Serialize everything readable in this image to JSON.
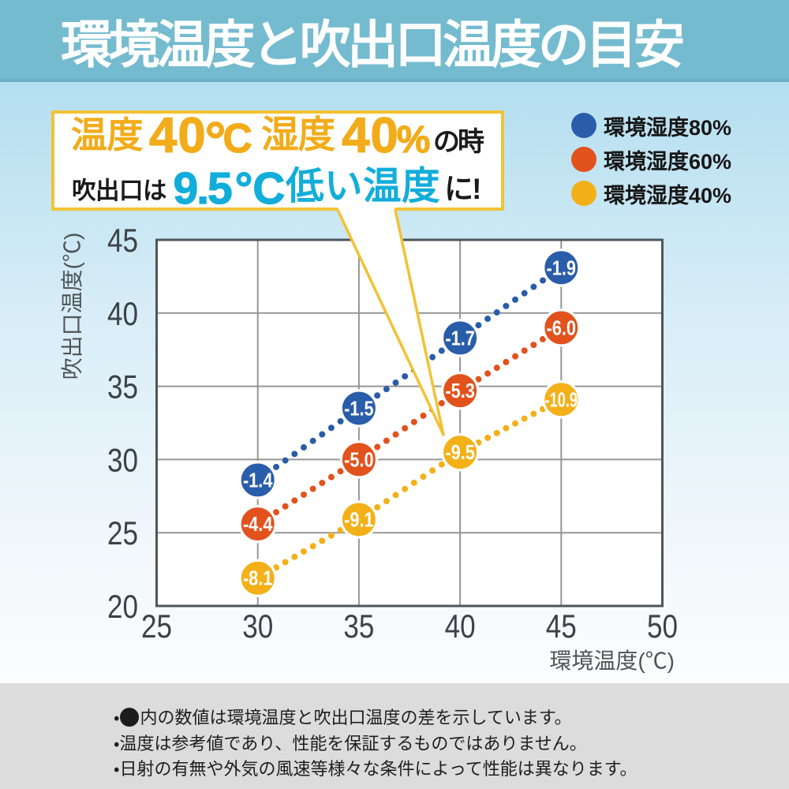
{
  "banner": {
    "title": "環境温度と吹出口温度の目安",
    "bg_color": "#74bbcf"
  },
  "callout": {
    "line1": {
      "temp_label": "温度",
      "temp_value": "40",
      "degree": "°",
      "unit_c": "C",
      "hum_label": "湿度",
      "hum_value": "40",
      "unit_pct": "%",
      "suffix": "の時"
    },
    "line2": {
      "prefix": "吹出口は",
      "value": "9.5",
      "unit": "°C",
      "highlight": "低い温度",
      "suffix": "に!"
    },
    "accent_amber": "#f2ac1a",
    "accent_cyan": "#12adda",
    "border_color": "#f2c235"
  },
  "legend": {
    "items": [
      {
        "label": "環境湿度80%",
        "color": "#2a5da9"
      },
      {
        "label": "環境湿度60%",
        "color": "#e2521d"
      },
      {
        "label": "環境湿度40%",
        "color": "#f4b018"
      }
    ]
  },
  "chart_data": {
    "type": "scatter",
    "x": [
      30,
      35,
      40,
      45
    ],
    "series": [
      {
        "name": "環境湿度80%",
        "color": "#2a5da9",
        "outlet_temp": [
          28.6,
          33.5,
          38.3,
          43.1
        ],
        "diff_labels": [
          "-1.4",
          "-1.5",
          "-1.7",
          "-1.9"
        ]
      },
      {
        "name": "環境湿度60%",
        "color": "#e2521d",
        "outlet_temp": [
          25.6,
          30.0,
          34.7,
          39.0
        ],
        "diff_labels": [
          "-4.4",
          "-5.0",
          "-5.3",
          "-6.0"
        ]
      },
      {
        "name": "環境湿度40%",
        "color": "#f4b018",
        "outlet_temp": [
          21.9,
          25.9,
          30.5,
          34.1
        ],
        "diff_labels": [
          "-8.1",
          "-9.1",
          "-9.5",
          "-10.9"
        ]
      }
    ],
    "xlabel": "環境温度(℃)",
    "ylabel": "吹出口温度(℃)",
    "xlim": [
      25,
      50
    ],
    "ylim": [
      20,
      45
    ],
    "x_ticks": [
      25,
      30,
      35,
      40,
      45,
      50
    ],
    "y_ticks": [
      45,
      40,
      35,
      30,
      25,
      20
    ],
    "grid": true,
    "legend_position": "top-right"
  },
  "notes": {
    "band_color": "#dcdcdc",
    "items": [
      {
        "bullet": "・",
        "icon": "●",
        "text": "内の数値は環境温度と吹出口温度の差を示しています。"
      },
      {
        "bullet": "・",
        "text": "温度は参考値であり、性能を保証するものではありません。"
      },
      {
        "bullet": "・",
        "text": "日射の有無や外気の風速等様々な条件によって性能は異なります。"
      }
    ]
  }
}
